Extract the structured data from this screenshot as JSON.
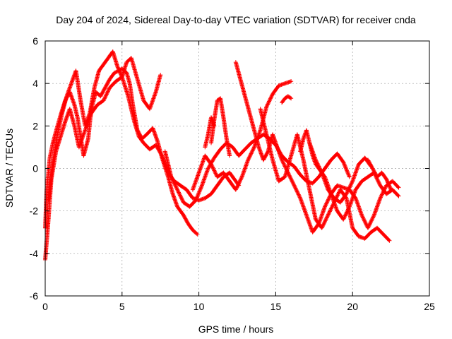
{
  "chart_data": {
    "type": "scatter",
    "title": "Day 204 of 2024, Sidereal Day-to-day VTEC variation (SDTVAR) for receiver cnda",
    "xlabel": "GPS time / hours",
    "ylabel": "SDTVAR / TECUs",
    "xlim": [
      0,
      25
    ],
    "ylim": [
      -6,
      6
    ],
    "x_ticks": [
      "0",
      "5",
      "10",
      "15",
      "20",
      "25"
    ],
    "y_ticks": [
      "-6",
      "-4",
      "-2",
      "0",
      "2",
      "4",
      "6"
    ],
    "grid": true,
    "marker": "plus",
    "color": "#ff0000",
    "series": [
      {
        "x": [
          0.0,
          0.1,
          0.3,
          0.5,
          0.8,
          1.0,
          1.3,
          1.6,
          1.9,
          2.1,
          2.3,
          2.5,
          2.8,
          3.0,
          3.3,
          3.6,
          3.9,
          4.2,
          4.5,
          4.8,
          5.0,
          5.3,
          5.5,
          5.7,
          6.0,
          6.3,
          6.6,
          7.0,
          7.3,
          7.6,
          8.0,
          8.3,
          8.6,
          9.0,
          9.3,
          9.6,
          9.9
        ],
        "y": [
          -2.8,
          -1.0,
          0.5,
          1.2,
          2.0,
          2.5,
          3.2,
          3.6,
          3.0,
          2.4,
          1.5,
          0.6,
          1.4,
          2.8,
          3.6,
          3.4,
          3.8,
          4.2,
          4.5,
          4.6,
          4.7,
          4.5,
          4.0,
          3.0,
          1.8,
          1.4,
          1.6,
          1.9,
          1.3,
          0.5,
          -0.4,
          -1.2,
          -1.8,
          -2.2,
          -2.6,
          -2.9,
          -3.1
        ]
      },
      {
        "x": [
          0.2,
          0.5,
          0.8,
          1.1,
          1.4,
          1.7,
          2.0,
          2.3,
          2.6,
          2.9,
          3.2,
          3.5,
          3.8,
          4.1,
          4.4,
          4.7,
          5.0,
          5.3,
          5.6,
          6.0,
          6.4,
          6.8,
          7.2,
          7.5
        ],
        "y": [
          -1.5,
          0.3,
          1.6,
          2.6,
          3.4,
          4.0,
          4.6,
          3.2,
          2.0,
          2.6,
          3.8,
          4.6,
          4.9,
          5.2,
          5.5,
          4.8,
          4.3,
          5.0,
          5.2,
          4.2,
          3.2,
          2.8,
          3.6,
          4.4
        ]
      },
      {
        "x": [
          0.0,
          0.2,
          0.4,
          0.7,
          1.0,
          1.3,
          1.6,
          1.9,
          2.2,
          2.6,
          3.0,
          3.4,
          3.8,
          4.2,
          4.6,
          5.0,
          5.4,
          5.8,
          6.1,
          6.4,
          6.8,
          7.2,
          7.6,
          8.0,
          8.4,
          8.8,
          9.2,
          9.6,
          10.0,
          10.4,
          10.8,
          11.2,
          11.6,
          12.0,
          12.3,
          12.6
        ],
        "y": [
          -4.3,
          -2.5,
          -0.5,
          0.8,
          1.5,
          2.2,
          2.8,
          2.0,
          1.0,
          1.8,
          2.6,
          3.0,
          3.2,
          3.8,
          4.1,
          4.3,
          3.4,
          2.2,
          1.5,
          1.2,
          0.9,
          1.1,
          0.6,
          -0.2,
          -0.6,
          -0.8,
          -1.0,
          -1.4,
          -1.5,
          -1.4,
          -1.2,
          -0.8,
          -0.4,
          -0.2,
          -0.5,
          -0.8
        ]
      },
      {
        "x": [
          7.8,
          8.2,
          8.6,
          9.0,
          9.4,
          9.8,
          10.2,
          10.6,
          11.0,
          11.4,
          11.8,
          12.2,
          12.6,
          13.0,
          13.4,
          13.8,
          14.2,
          14.6,
          15.0,
          15.4,
          15.8,
          16.2,
          16.6,
          17.0,
          17.4,
          17.8,
          18.2,
          18.6,
          19.0,
          19.4,
          19.8
        ],
        "y": [
          0.8,
          -0.4,
          -1.0,
          -1.6,
          -1.8,
          -1.5,
          -0.8,
          0.0,
          0.5,
          0.9,
          1.2,
          1.0,
          0.6,
          0.9,
          1.2,
          1.4,
          1.6,
          1.4,
          1.1,
          0.6,
          0.3,
          0.1,
          -0.3,
          -0.6,
          -0.7,
          -0.4,
          0.0,
          0.4,
          0.7,
          0.3,
          -0.4
        ]
      },
      {
        "x": [
          9.6,
          10.0,
          10.4,
          10.8,
          11.2,
          11.6,
          12.0,
          12.4,
          12.8,
          13.2,
          13.6,
          14.0,
          14.4,
          14.8,
          15.2,
          15.6,
          16.0
        ],
        "y": [
          -1.0,
          -0.2,
          0.6,
          0.2,
          -0.4,
          -0.2,
          -0.6,
          -1.0,
          -0.4,
          0.4,
          1.0,
          1.8,
          2.9,
          3.5,
          3.9,
          4.0,
          4.1
        ]
      },
      {
        "x": [
          10.8,
          11.0,
          11.2,
          11.4,
          11.6,
          11.8,
          12.0
        ],
        "y": [
          1.2,
          2.3,
          3.2,
          3.3,
          2.4,
          1.4,
          0.6
        ]
      },
      {
        "x": [
          10.4,
          10.6,
          10.8,
          11.0
        ],
        "y": [
          1.0,
          1.6,
          2.4,
          2.0
        ]
      },
      {
        "x": [
          12.4,
          12.7,
          13.0,
          13.3,
          13.6,
          13.9,
          14.2,
          14.5,
          14.8,
          15.1,
          15.4,
          15.8,
          16.2,
          16.6,
          17.0,
          17.4,
          17.8,
          18.2,
          18.6,
          19.0,
          19.4,
          19.8,
          20.2,
          20.6,
          21.0,
          21.4,
          21.8,
          22.2,
          22.6,
          23.0
        ],
        "y": [
          5.0,
          4.2,
          3.4,
          2.6,
          1.8,
          1.0,
          0.4,
          0.8,
          1.6,
          1.0,
          0.4,
          -0.2,
          -0.8,
          -1.4,
          -2.2,
          -3.0,
          -2.6,
          -1.8,
          -1.2,
          -0.8,
          -0.9,
          -1.0,
          -1.4,
          -2.2,
          -2.8,
          -2.2,
          -1.4,
          -0.8,
          -0.6,
          -0.9
        ]
      },
      {
        "x": [
          14.0,
          14.4,
          14.8,
          15.2,
          15.6,
          16.0,
          16.4,
          16.8,
          17.2,
          17.6,
          18.0,
          18.4,
          18.8,
          19.2,
          19.6,
          20.0,
          20.4,
          20.8,
          21.2,
          21.6,
          22.0,
          22.4
        ],
        "y": [
          2.8,
          1.6,
          0.4,
          -0.6,
          -0.4,
          0.6,
          1.6,
          0.4,
          -1.0,
          -2.4,
          -2.8,
          -2.2,
          -1.6,
          -1.0,
          -1.4,
          -2.8,
          -3.2,
          -3.3,
          -3.0,
          -2.8,
          -3.1,
          -3.4
        ]
      },
      {
        "x": [
          16.6,
          16.8,
          17.0,
          17.2,
          17.4,
          17.6,
          17.8,
          18.2,
          18.6,
          19.0,
          19.4,
          19.8,
          20.2,
          20.6,
          21.0,
          21.4,
          21.8,
          22.2,
          22.6,
          23.0
        ],
        "y": [
          0.8,
          1.4,
          1.8,
          1.2,
          0.6,
          0.2,
          0.0,
          -0.4,
          -1.2,
          -2.0,
          -2.4,
          -1.8,
          -1.0,
          -0.6,
          -0.4,
          -0.2,
          -0.8,
          -1.2,
          -1.0,
          -1.3
        ]
      },
      {
        "x": [
          17.2,
          17.6,
          18.0,
          18.4,
          18.8,
          19.2,
          19.6,
          20.0,
          20.4,
          20.8,
          21.2
        ],
        "y": [
          1.2,
          0.4,
          -0.2,
          -1.0,
          -1.4,
          -1.6,
          -1.2,
          -0.6,
          0.2,
          0.5,
          0.1
        ]
      },
      {
        "x": [
          15.4,
          15.6,
          15.8,
          16.0
        ],
        "y": [
          3.1,
          3.3,
          3.4,
          3.3
        ]
      },
      {
        "x": [
          21.0,
          21.3,
          21.6,
          21.9,
          22.2,
          22.5
        ],
        "y": [
          0.4,
          0.0,
          -0.4,
          -0.2,
          -0.5,
          -1.0
        ]
      }
    ]
  }
}
